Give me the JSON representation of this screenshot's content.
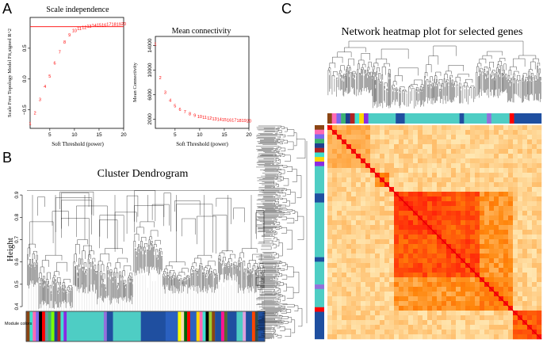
{
  "panels": {
    "a": "A",
    "b": "B",
    "c": "C"
  },
  "chart_data": [
    {
      "type": "scatter",
      "title": "Scale independence",
      "xlabel": "Soft Threshold (power)",
      "ylabel": "Scale Free Topology Model Fit,signed R^2",
      "xlim": [
        1,
        20
      ],
      "ylim": [
        -0.8,
        1.0
      ],
      "xticks": [
        5,
        10,
        15,
        20
      ],
      "yticks": [
        -0.5,
        0.0,
        0.5
      ],
      "ytick_labels": [
        "−0.5",
        "0.0",
        "0.5"
      ],
      "hline": 0.85,
      "point_labels": [
        "1",
        "2",
        "3",
        "4",
        "5",
        "6",
        "7",
        "8",
        "9",
        "10",
        "11",
        "12",
        "13",
        "14",
        "15",
        "16",
        "17",
        "18",
        "19",
        "20"
      ],
      "x": [
        1,
        2,
        3,
        4,
        5,
        6,
        7,
        8,
        9,
        10,
        11,
        12,
        13,
        14,
        15,
        16,
        17,
        18,
        19,
        20
      ],
      "y": [
        -0.72,
        -0.55,
        -0.33,
        -0.12,
        0.05,
        0.26,
        0.44,
        0.6,
        0.72,
        0.79,
        0.82,
        0.84,
        0.86,
        0.87,
        0.88,
        0.88,
        0.89,
        0.89,
        0.89,
        0.9
      ]
    },
    {
      "type": "scatter",
      "title": "Mean connectivity",
      "xlabel": "Soft Threshold (power)",
      "ylabel": "Mean Connectivity",
      "xlim": [
        1,
        20
      ],
      "ylim": [
        500,
        15500
      ],
      "xticks": [
        5,
        10,
        15,
        20
      ],
      "yticks": [
        2000,
        6000,
        10000,
        14000
      ],
      "ytick_labels": [
        "2000",
        "6000",
        "10000",
        "14000"
      ],
      "point_labels": [
        "1",
        "2",
        "3",
        "4",
        "5",
        "6",
        "7",
        "8",
        "9",
        "10",
        "11",
        "12",
        "13",
        "14",
        "15",
        "16",
        "17",
        "18",
        "19",
        "20"
      ],
      "x": [
        1,
        2,
        3,
        4,
        5,
        6,
        7,
        8,
        9,
        10,
        11,
        12,
        13,
        14,
        15,
        16,
        17,
        18,
        19,
        20
      ],
      "y": [
        14300,
        8800,
        6400,
        5100,
        4200,
        3600,
        3200,
        2900,
        2650,
        2450,
        2300,
        2180,
        2080,
        2000,
        1940,
        1890,
        1850,
        1810,
        1780,
        1750
      ]
    }
  ],
  "dendrogram": {
    "title": "Cluster Dendrogram",
    "ylabel": "Height",
    "ylim": [
      0.4,
      0.95
    ],
    "yticks": [
      0.4,
      0.5,
      0.6,
      0.7,
      0.8,
      0.9
    ],
    "ytick_labels": [
      "0.4",
      "0.5",
      "0.6",
      "0.7",
      "0.8",
      "0.9"
    ],
    "colorbar_label": "Module colors",
    "module_colors": [
      {
        "color": "#8b4513",
        "w": 1
      },
      {
        "color": "#40e0d0",
        "w": 1
      },
      {
        "color": "#ff69b4",
        "w": 1
      },
      {
        "color": "#7b68ee",
        "w": 1
      },
      {
        "color": "#000000",
        "w": 1
      },
      {
        "color": "#ff0000",
        "w": 1
      },
      {
        "color": "#5f9ea0",
        "w": 1
      },
      {
        "color": "#3cb371",
        "w": 1
      },
      {
        "color": "#7cfc00",
        "w": 1
      },
      {
        "color": "#1e3f8f",
        "w": 1
      },
      {
        "color": "#b22222",
        "w": 1
      },
      {
        "color": "#40e0d0",
        "w": 1
      },
      {
        "color": "#8a2be2",
        "w": 1
      },
      {
        "color": "#4ecdc4",
        "w": 12
      },
      {
        "color": "#9370db",
        "w": 1
      },
      {
        "color": "#1f4fa0",
        "w": 2
      },
      {
        "color": "#4ecdc4",
        "w": 9
      },
      {
        "color": "#1f4fa0",
        "w": 8
      },
      {
        "color": "#2a60c0",
        "w": 4
      },
      {
        "color": "#ffff00",
        "w": 1
      },
      {
        "color": "#f5deb3",
        "w": 1
      },
      {
        "color": "#006400",
        "w": 1
      },
      {
        "color": "#ff0000",
        "w": 1
      },
      {
        "color": "#2a60c0",
        "w": 2
      },
      {
        "color": "#ffd700",
        "w": 1
      },
      {
        "color": "#ff69b4",
        "w": 1
      },
      {
        "color": "#40e0d0",
        "w": 1
      },
      {
        "color": "#000000",
        "w": 1
      },
      {
        "color": "#9acd32",
        "w": 1
      },
      {
        "color": "#8b4513",
        "w": 1
      },
      {
        "color": "#1f4fa0",
        "w": 2
      },
      {
        "color": "#ff1493",
        "w": 1
      },
      {
        "color": "#556b2f",
        "w": 1
      },
      {
        "color": "#1f4fa0",
        "w": 3
      },
      {
        "color": "#4ecdc4",
        "w": 2
      },
      {
        "color": "#dda0dd",
        "w": 1
      },
      {
        "color": "#1f4fa0",
        "w": 2
      },
      {
        "color": "#ff4500",
        "w": 1
      },
      {
        "color": "#2f4f4f",
        "w": 1
      },
      {
        "color": "#1f4fa0",
        "w": 2
      }
    ]
  },
  "heatmap": {
    "title": "Network heatmap plot for selected genes",
    "module_colors": [
      {
        "color": "#8b4513",
        "w": 1
      },
      {
        "color": "#ff69b4",
        "w": 1
      },
      {
        "color": "#7b68ee",
        "w": 1
      },
      {
        "color": "#3cb371",
        "w": 1
      },
      {
        "color": "#1e3f8f",
        "w": 1
      },
      {
        "color": "#b22222",
        "w": 1
      },
      {
        "color": "#40e0d0",
        "w": 1
      },
      {
        "color": "#ffd700",
        "w": 1
      },
      {
        "color": "#8a2be2",
        "w": 1
      },
      {
        "color": "#4ecdc4",
        "w": 6
      },
      {
        "color": "#1f4fa0",
        "w": 2
      },
      {
        "color": "#4ecdc4",
        "w": 12
      },
      {
        "color": "#1f4fa0",
        "w": 1
      },
      {
        "color": "#4ecdc4",
        "w": 5
      },
      {
        "color": "#9370db",
        "w": 1
      },
      {
        "color": "#4ecdc4",
        "w": 4
      },
      {
        "color": "#ff0000",
        "w": 1
      },
      {
        "color": "#1f4fa0",
        "w": 6
      }
    ],
    "blocks": [
      {
        "from": 0.0,
        "to": 0.2,
        "level": 0.35
      },
      {
        "from": 0.22,
        "to": 0.3,
        "level": 0.55
      },
      {
        "from": 0.32,
        "to": 0.52,
        "level": 0.85
      },
      {
        "from": 0.52,
        "to": 0.72,
        "level": 0.8
      },
      {
        "from": 0.72,
        "to": 0.86,
        "level": 0.55
      },
      {
        "from": 0.86,
        "to": 1.0,
        "level": 0.7
      }
    ]
  }
}
